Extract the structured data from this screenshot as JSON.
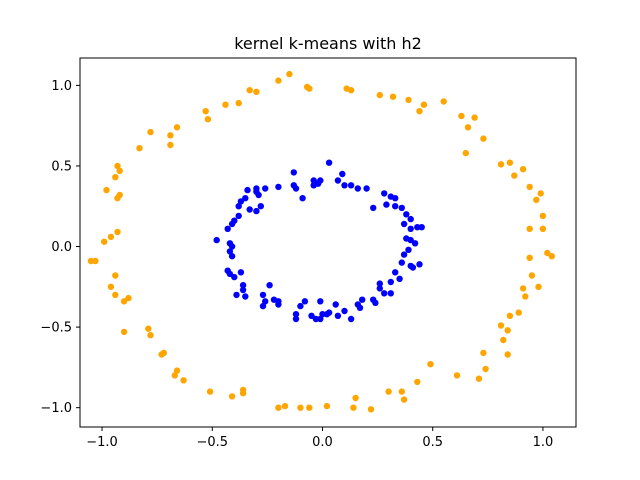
{
  "chart_data": {
    "type": "scatter",
    "title": "kernel k-means with h2",
    "xlabel": "",
    "ylabel": "",
    "xlim": [
      -1.1,
      1.15
    ],
    "ylim": [
      -1.12,
      1.17
    ],
    "xticks": [
      -1.0,
      -0.5,
      0.0,
      0.5,
      1.0
    ],
    "xtick_labels": [
      "−1.0",
      "−0.5",
      "0.0",
      "0.5",
      "1.0"
    ],
    "yticks": [
      -1.0,
      -0.5,
      0.0,
      0.5,
      1.0
    ],
    "ytick_labels": [
      "−1.0",
      "−0.5",
      "0.0",
      "0.5",
      "1.0"
    ],
    "grid": false,
    "legend": "none",
    "series": [
      {
        "color": "#FFA500",
        "points": [
          [
            -0.15,
            1.07
          ],
          [
            -0.2,
            1.03
          ],
          [
            -0.07,
            0.99
          ],
          [
            -0.06,
            0.98
          ],
          [
            0.11,
            0.98
          ],
          [
            0.13,
            0.97
          ],
          [
            -0.3,
            0.96
          ],
          [
            -0.33,
            0.97
          ],
          [
            0.26,
            0.94
          ],
          [
            0.32,
            0.93
          ],
          [
            0.39,
            0.91
          ],
          [
            0.46,
            0.88
          ],
          [
            -0.38,
            0.89
          ],
          [
            -0.44,
            0.88
          ],
          [
            -0.53,
            0.84
          ],
          [
            -0.52,
            0.79
          ],
          [
            0.44,
            0.84
          ],
          [
            0.55,
            0.9
          ],
          [
            0.63,
            0.81
          ],
          [
            0.69,
            0.8
          ],
          [
            -0.66,
            0.74
          ],
          [
            -0.69,
            0.69
          ],
          [
            -0.78,
            0.71
          ],
          [
            0.66,
            0.74
          ],
          [
            0.73,
            0.67
          ],
          [
            -0.69,
            0.63
          ],
          [
            -0.83,
            0.61
          ],
          [
            0.65,
            0.58
          ],
          [
            0.81,
            0.51
          ],
          [
            0.85,
            0.52
          ],
          [
            -0.93,
            0.5
          ],
          [
            -0.92,
            0.47
          ],
          [
            0.91,
            0.48
          ],
          [
            0.87,
            0.44
          ],
          [
            -0.94,
            0.43
          ],
          [
            -0.98,
            0.35
          ],
          [
            0.94,
            0.37
          ],
          [
            0.99,
            0.33
          ],
          [
            -0.92,
            0.32
          ],
          [
            -0.93,
            0.3
          ],
          [
            0.97,
            0.29
          ],
          [
            1.0,
            0.19
          ],
          [
            -0.96,
            0.06
          ],
          [
            -0.93,
            0.09
          ],
          [
            -0.99,
            0.03
          ],
          [
            0.94,
            0.11
          ],
          [
            1.0,
            0.11
          ],
          [
            -1.03,
            -0.09
          ],
          [
            -1.05,
            -0.09
          ],
          [
            1.02,
            -0.04
          ],
          [
            1.04,
            -0.06
          ],
          [
            -0.94,
            -0.18
          ],
          [
            0.94,
            -0.07
          ],
          [
            0.95,
            -0.18
          ],
          [
            -0.96,
            -0.25
          ],
          [
            0.98,
            -0.25
          ],
          [
            -0.94,
            -0.3
          ],
          [
            -0.9,
            -0.34
          ],
          [
            0.91,
            -0.26
          ],
          [
            -0.88,
            -0.32
          ],
          [
            0.92,
            -0.31
          ],
          [
            0.89,
            -0.41
          ],
          [
            0.85,
            -0.43
          ],
          [
            0.81,
            -0.49
          ],
          [
            -0.79,
            -0.51
          ],
          [
            -0.78,
            -0.55
          ],
          [
            0.84,
            -0.52
          ],
          [
            -0.9,
            -0.53
          ],
          [
            0.82,
            -0.58
          ],
          [
            0.84,
            -0.67
          ],
          [
            -0.72,
            -0.66
          ],
          [
            -0.73,
            -0.67
          ],
          [
            0.73,
            -0.66
          ],
          [
            0.49,
            -0.73
          ],
          [
            -0.66,
            -0.77
          ],
          [
            -0.67,
            -0.8
          ],
          [
            -0.63,
            -0.83
          ],
          [
            0.74,
            -0.76
          ],
          [
            0.61,
            -0.8
          ],
          [
            0.71,
            -0.82
          ],
          [
            0.43,
            -0.84
          ],
          [
            -0.51,
            -0.9
          ],
          [
            -0.41,
            -0.93
          ],
          [
            -0.36,
            -0.89
          ],
          [
            -0.36,
            -0.91
          ],
          [
            0.3,
            -0.9
          ],
          [
            0.36,
            -0.9
          ],
          [
            0.37,
            -0.95
          ],
          [
            0.15,
            -0.94
          ],
          [
            -0.17,
            -0.99
          ],
          [
            -0.2,
            -1.0
          ],
          [
            -0.06,
            -1.0
          ],
          [
            -0.1,
            -1.0
          ],
          [
            0.02,
            -0.99
          ],
          [
            0.14,
            -1.0
          ],
          [
            0.22,
            -1.01
          ]
        ]
      },
      {
        "color": "#0000FF",
        "points": [
          [
            0.03,
            0.52
          ],
          [
            -0.13,
            0.46
          ],
          [
            0.09,
            0.45
          ],
          [
            0.07,
            0.41
          ],
          [
            -0.04,
            0.41
          ],
          [
            -0.04,
            0.38
          ],
          [
            -0.02,
            0.39
          ],
          [
            -0.01,
            0.41
          ],
          [
            0.1,
            0.38
          ],
          [
            0.13,
            0.38
          ],
          [
            0.16,
            0.36
          ],
          [
            0.2,
            0.36
          ],
          [
            -0.13,
            0.38
          ],
          [
            -0.12,
            0.36
          ],
          [
            -0.2,
            0.37
          ],
          [
            -0.26,
            0.36
          ],
          [
            -0.3,
            0.36
          ],
          [
            -0.3,
            0.34
          ],
          [
            -0.34,
            0.35
          ],
          [
            -0.09,
            0.3
          ],
          [
            0.28,
            0.33
          ],
          [
            0.31,
            0.31
          ],
          [
            0.33,
            0.3
          ],
          [
            -0.29,
            0.32
          ],
          [
            -0.35,
            0.3
          ],
          [
            -0.37,
            0.28
          ],
          [
            -0.28,
            0.25
          ],
          [
            -0.38,
            0.25
          ],
          [
            -0.33,
            0.23
          ],
          [
            0.33,
            0.25
          ],
          [
            0.36,
            0.24
          ],
          [
            0.29,
            0.26
          ],
          [
            0.23,
            0.24
          ],
          [
            -0.3,
            0.22
          ],
          [
            -0.38,
            0.19
          ],
          [
            -0.4,
            0.16
          ],
          [
            -0.41,
            0.14
          ],
          [
            0.38,
            0.2
          ],
          [
            0.4,
            0.17
          ],
          [
            0.37,
            0.14
          ],
          [
            0.4,
            0.11
          ],
          [
            0.43,
            0.12
          ],
          [
            0.45,
            0.12
          ],
          [
            -0.43,
            0.11
          ],
          [
            0.38,
            0.05
          ],
          [
            0.4,
            0.04
          ],
          [
            -0.48,
            0.04
          ],
          [
            -0.42,
            0.02
          ],
          [
            -0.41,
            0.0
          ],
          [
            0.42,
            0.02
          ],
          [
            0.39,
            -0.02
          ],
          [
            -0.42,
            -0.03
          ],
          [
            0.37,
            -0.05
          ],
          [
            -0.41,
            -0.06
          ],
          [
            0.36,
            -0.1
          ],
          [
            0.4,
            -0.12
          ],
          [
            0.41,
            -0.13
          ],
          [
            0.44,
            -0.11
          ],
          [
            -0.43,
            -0.15
          ],
          [
            -0.42,
            -0.17
          ],
          [
            -0.37,
            -0.16
          ],
          [
            0.33,
            -0.16
          ],
          [
            -0.4,
            -0.19
          ],
          [
            0.35,
            -0.2
          ],
          [
            0.31,
            -0.22
          ],
          [
            -0.36,
            -0.24
          ],
          [
            0.26,
            -0.23
          ],
          [
            0.26,
            -0.26
          ],
          [
            0.28,
            -0.29
          ],
          [
            -0.24,
            -0.24
          ],
          [
            -0.36,
            -0.27
          ],
          [
            -0.35,
            -0.31
          ],
          [
            -0.27,
            -0.3
          ],
          [
            0.31,
            -0.29
          ],
          [
            -0.39,
            -0.3
          ],
          [
            0.23,
            -0.33
          ],
          [
            0.24,
            -0.35
          ],
          [
            0.18,
            -0.33
          ],
          [
            0.16,
            -0.36
          ],
          [
            -0.22,
            -0.33
          ],
          [
            -0.2,
            -0.34
          ],
          [
            -0.26,
            -0.34
          ],
          [
            -0.27,
            -0.37
          ],
          [
            -0.2,
            -0.36
          ],
          [
            -0.08,
            -0.34
          ],
          [
            -0.01,
            -0.34
          ],
          [
            0.06,
            -0.36
          ],
          [
            0.17,
            -0.38
          ],
          [
            -0.1,
            -0.37
          ],
          [
            0.1,
            -0.4
          ],
          [
            0.13,
            -0.45
          ],
          [
            -0.12,
            -0.42
          ],
          [
            -0.12,
            -0.45
          ],
          [
            -0.05,
            -0.43
          ],
          [
            -0.03,
            -0.45
          ],
          [
            0.0,
            -0.42
          ],
          [
            0.02,
            -0.42
          ],
          [
            0.07,
            -0.43
          ],
          [
            -0.01,
            -0.45
          ],
          [
            0.03,
            -0.41
          ]
        ]
      }
    ]
  }
}
